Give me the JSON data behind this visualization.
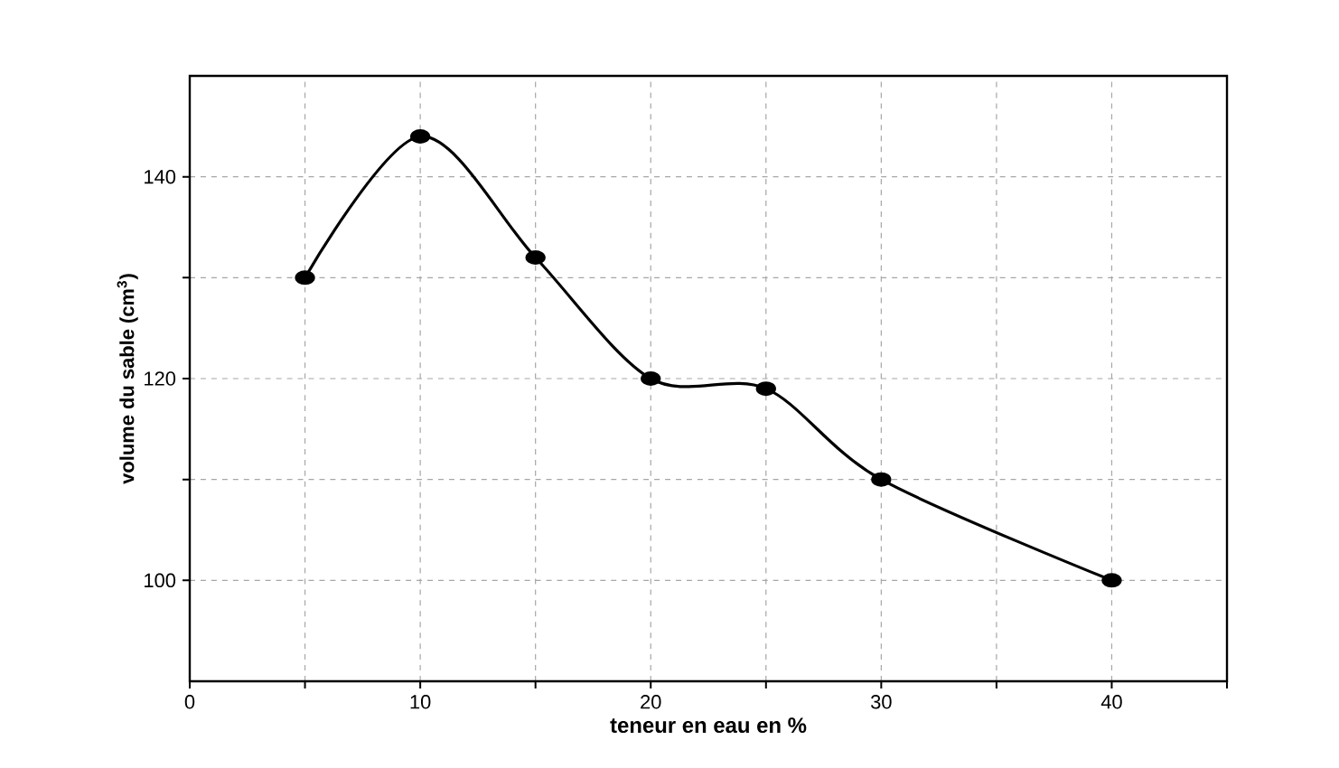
{
  "chart_data": {
    "type": "line",
    "xlabel": "teneur en eau en %",
    "ylabel": "volume du sable (cm$^{3}$)",
    "x": [
      5,
      10,
      15,
      20,
      25,
      30,
      40
    ],
    "series": [
      {
        "color": "#000000",
        "values": [
          130,
          144,
          132,
          120,
          119,
          110,
          100
        ]
      }
    ],
    "xlim": [
      0,
      45
    ],
    "ylim": [
      90,
      150
    ],
    "xticks": [
      0,
      {
        "value": 5,
        "label": null
      },
      10,
      {
        "value": 15,
        "label": null
      },
      20,
      {
        "value": 25,
        "label": null
      },
      30,
      {
        "value": 35,
        "label": null
      },
      40,
      {
        "value": 45,
        "label": null
      }
    ],
    "yticks": [
      100,
      {
        "value": 110,
        "label": null
      },
      120,
      {
        "value": 130,
        "label": null
      },
      140
    ],
    "grid": true,
    "marker": "circle",
    "line_style": "solid"
  }
}
